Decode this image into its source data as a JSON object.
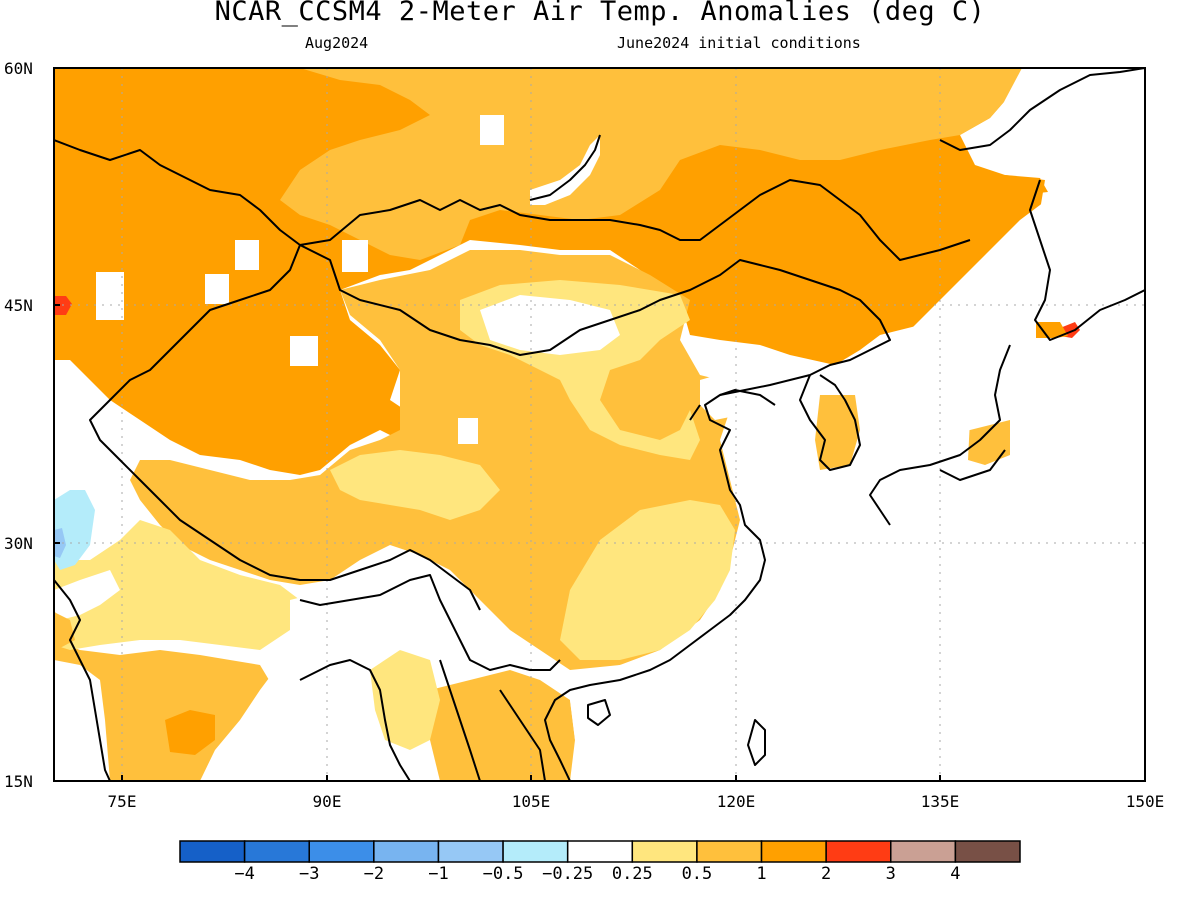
{
  "header": {
    "title": "NCAR_CCSM4 2-Meter Air Temp. Anomalies (deg C)",
    "valid_month": "Aug2024",
    "init_label": "June2024 initial conditions"
  },
  "map": {
    "lat_ticks": [
      "60N",
      "45N",
      "30N",
      "15N"
    ],
    "lon_ticks": [
      "75E",
      "90E",
      "105E",
      "120E",
      "135E",
      "150E"
    ],
    "extent": {
      "lon": [
        70,
        150
      ],
      "lat": [
        15,
        60
      ]
    }
  },
  "colorbar": {
    "labels": [
      "-4",
      "-3",
      "-2",
      "-1",
      "-0.5",
      "-0.25",
      "0.25",
      "0.5",
      "1",
      "2",
      "3",
      "4"
    ],
    "colors": [
      "#1560c8",
      "#2878d8",
      "#3c8ee8",
      "#78b4f0",
      "#96c8f5",
      "#b4ecfa",
      "#ffffff",
      "#ffe67e",
      "#ffc03c",
      "#ffa000",
      "#ff3c14",
      "#caa094",
      "#785046"
    ]
  }
}
